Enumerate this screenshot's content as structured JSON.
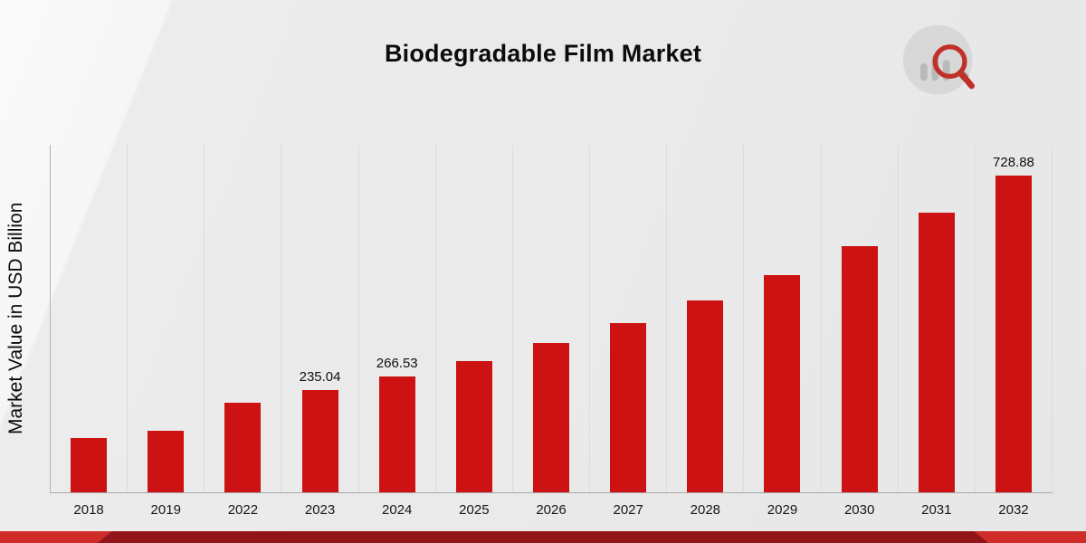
{
  "title": "Biodegradable Film Market",
  "y_axis_label": "Market Value in USD Billion",
  "logo": {
    "name": "market-research-future-logo"
  },
  "colors": {
    "bar": "#cc1212",
    "gridline": "#dcdcdc",
    "axis": "#a8a8a8",
    "ribbon": "#cf2b28",
    "ribbon_dark": "#911518",
    "logo_circle": "#d8d8d8",
    "logo_bars": "#b9b9b9",
    "logo_glass": "#c03028"
  },
  "chart_data": {
    "type": "bar",
    "title": "Biodegradable Film Market",
    "xlabel": "",
    "ylabel": "Market Value in USD Billion",
    "unit": "USD Billion",
    "ylim": [
      0,
      800
    ],
    "grid": "vertical",
    "legend": "none",
    "bar_color": "#cc1212",
    "categories": [
      "2018",
      "2019",
      "2022",
      "2023",
      "2024",
      "2025",
      "2026",
      "2027",
      "2028",
      "2029",
      "2030",
      "2031",
      "2032"
    ],
    "values": [
      125.3,
      142.1,
      207.3,
      235.04,
      266.53,
      302.3,
      342.8,
      388.7,
      440.8,
      499.8,
      566.8,
      642.8,
      728.88
    ],
    "value_labels": [
      "",
      "",
      "",
      "235.04",
      "266.53",
      "",
      "",
      "",
      "",
      "",
      "",
      "",
      "728.88"
    ]
  }
}
